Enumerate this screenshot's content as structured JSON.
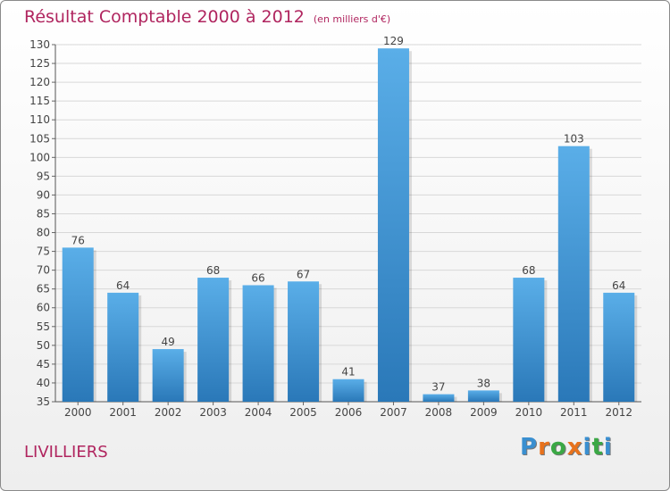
{
  "title": "Résultat Comptable 2000 à 2012",
  "unit": "(en milliers d'€)",
  "commune": "LIVILLIERS",
  "logo": {
    "text": "Proxiti",
    "letters": [
      "P",
      "r",
      "o",
      "x",
      "i",
      "t",
      "i"
    ],
    "colors": [
      "#3a8fd0",
      "#e8721c",
      "#3aa845",
      "#e8721c",
      "#3a8fd0",
      "#3aa845",
      "#3a8fd0"
    ]
  },
  "colors": {
    "accent": "#b0255f",
    "bar_top": "#5aaee8",
    "bar_bottom": "#2a78b8",
    "grid": "#d8d8d8"
  },
  "chart_data": {
    "type": "bar",
    "title": "Résultat Comptable 2000 à 2012",
    "subtitle": "(en milliers d'€)",
    "categories": [
      "2000",
      "2001",
      "2002",
      "2003",
      "2004",
      "2005",
      "2006",
      "2007",
      "2008",
      "2009",
      "2010",
      "2011",
      "2012"
    ],
    "values": [
      76,
      64,
      49,
      68,
      66,
      67,
      41,
      129,
      37,
      38,
      68,
      103,
      64
    ],
    "ylim": [
      35,
      130
    ],
    "yticks": [
      35,
      40,
      45,
      50,
      55,
      60,
      65,
      70,
      75,
      80,
      85,
      90,
      95,
      100,
      105,
      110,
      115,
      120,
      125,
      130
    ],
    "grid": true,
    "xlabel": "",
    "ylabel": ""
  }
}
